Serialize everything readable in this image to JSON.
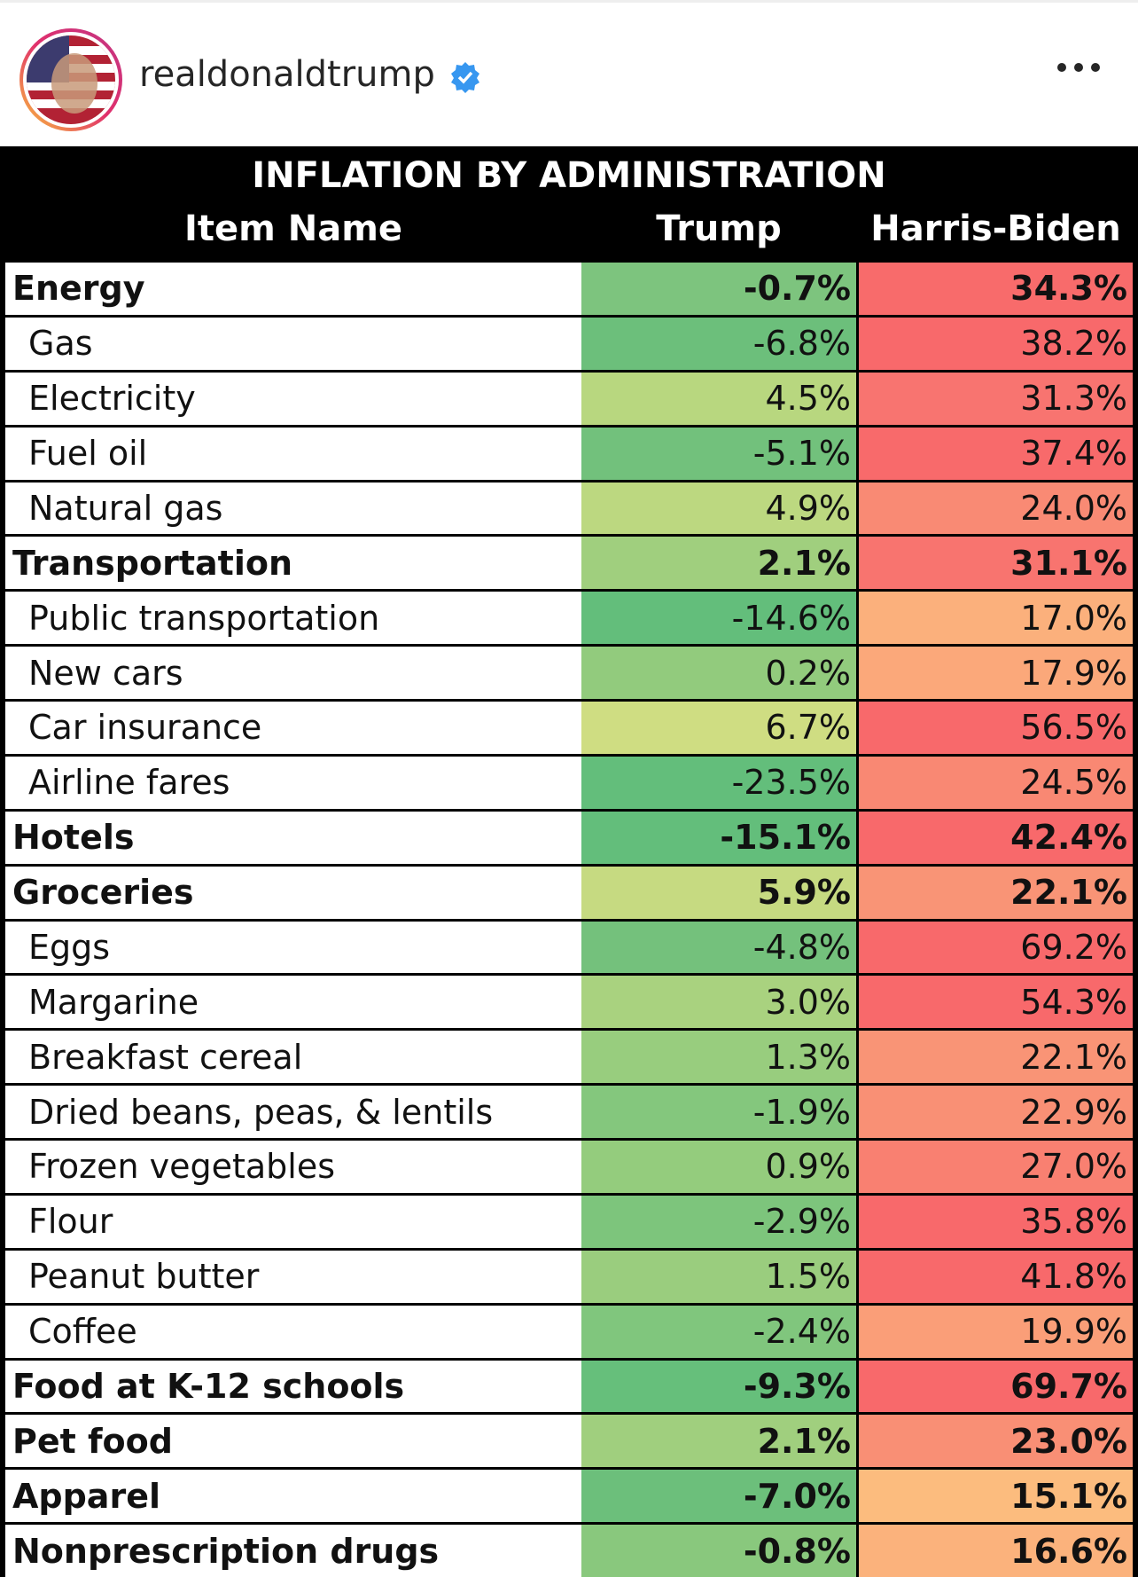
{
  "header": {
    "username": "realdonaldtrump"
  },
  "table": {
    "title": "INFLATION BY ADMINISTRATION",
    "columns": [
      "Item Name",
      "Trump",
      "Harris-Biden"
    ],
    "rows": [
      {
        "cells": [
          "Energy",
          "-0.7%",
          "34.3%"
        ],
        "bold": true,
        "colors": [
          "#7dc47e",
          "#f86b6b"
        ]
      },
      {
        "cells": [
          "Gas",
          "-6.8%",
          "38.2%"
        ],
        "bold": false,
        "colors": [
          "#6cbf7b",
          "#f8696b"
        ]
      },
      {
        "cells": [
          "Electricity",
          "4.5%",
          "31.3%"
        ],
        "bold": false,
        "colors": [
          "#b8d77f",
          "#f87470"
        ]
      },
      {
        "cells": [
          "Fuel oil",
          "-5.1%",
          "37.4%"
        ],
        "bold": false,
        "colors": [
          "#72c17c",
          "#f86a6b"
        ]
      },
      {
        "cells": [
          "Natural gas",
          "4.9%",
          "24.0%"
        ],
        "bold": false,
        "colors": [
          "#bcd880",
          "#f98a74"
        ]
      },
      {
        "cells": [
          "Transportation",
          "2.1%",
          "31.1%"
        ],
        "bold": true,
        "colors": [
          "#a0cf7e",
          "#f8746f"
        ]
      },
      {
        "cells": [
          "Public transportation",
          "-14.6%",
          "17.0%"
        ],
        "bold": false,
        "colors": [
          "#63be7b",
          "#fbb07c"
        ]
      },
      {
        "cells": [
          "New cars",
          "0.2%",
          "17.9%"
        ],
        "bold": false,
        "colors": [
          "#92cb7d",
          "#fba87a"
        ]
      },
      {
        "cells": [
          "Car insurance",
          "6.7%",
          "56.5%"
        ],
        "bold": false,
        "colors": [
          "#cfdd82",
          "#f8696b"
        ]
      },
      {
        "cells": [
          "Airline fares",
          "-23.5%",
          "24.5%"
        ],
        "bold": false,
        "colors": [
          "#63be7b",
          "#f98873"
        ]
      },
      {
        "cells": [
          "Hotels",
          "-15.1%",
          "42.4%"
        ],
        "bold": true,
        "colors": [
          "#63be7b",
          "#f8696b"
        ]
      },
      {
        "cells": [
          "Groceries",
          "5.9%",
          "22.1%"
        ],
        "bold": true,
        "colors": [
          "#c6da81",
          "#f99476"
        ]
      },
      {
        "cells": [
          "Eggs",
          "-4.8%",
          "69.2%"
        ],
        "bold": false,
        "colors": [
          "#74c17c",
          "#f8696b"
        ]
      },
      {
        "cells": [
          "Margarine",
          "3.0%",
          "54.3%"
        ],
        "bold": false,
        "colors": [
          "#a9d27f",
          "#f8696b"
        ]
      },
      {
        "cells": [
          "Breakfast cereal",
          "1.3%",
          "22.1%"
        ],
        "bold": false,
        "colors": [
          "#98cd7e",
          "#f99476"
        ]
      },
      {
        "cells": [
          "Dried beans, peas, & lentils",
          "-1.9%",
          "22.9%"
        ],
        "bold": false,
        "colors": [
          "#84c77d",
          "#f99075"
        ]
      },
      {
        "cells": [
          "Frozen vegetables",
          "0.9%",
          "27.0%"
        ],
        "bold": false,
        "colors": [
          "#94cc7d",
          "#f98071"
        ]
      },
      {
        "cells": [
          "Flour",
          "-2.9%",
          "35.8%"
        ],
        "bold": false,
        "colors": [
          "#7dc57c",
          "#f8696b"
        ]
      },
      {
        "cells": [
          "Peanut butter",
          "1.5%",
          "41.8%"
        ],
        "bold": false,
        "colors": [
          "#9acd7e",
          "#f8696b"
        ]
      },
      {
        "cells": [
          "Coffee",
          "-2.4%",
          "19.9%"
        ],
        "bold": false,
        "colors": [
          "#80c67d",
          "#fa9e78"
        ]
      },
      {
        "cells": [
          "Food at K-12 schools",
          "-9.3%",
          "69.7%"
        ],
        "bold": true,
        "colors": [
          "#66bf7b",
          "#f8696b"
        ]
      },
      {
        "cells": [
          "Pet food",
          "2.1%",
          "23.0%"
        ],
        "bold": true,
        "colors": [
          "#a0cf7e",
          "#f98f75"
        ]
      },
      {
        "cells": [
          "Apparel",
          "-7.0%",
          "15.1%"
        ],
        "bold": true,
        "colors": [
          "#6cbf7b",
          "#fcbc7e"
        ]
      },
      {
        "cells": [
          "Nonprescription drugs",
          "-0.8%",
          "16.6%"
        ],
        "bold": true,
        "colors": [
          "#89c87d",
          "#fbb27c"
        ]
      }
    ]
  }
}
